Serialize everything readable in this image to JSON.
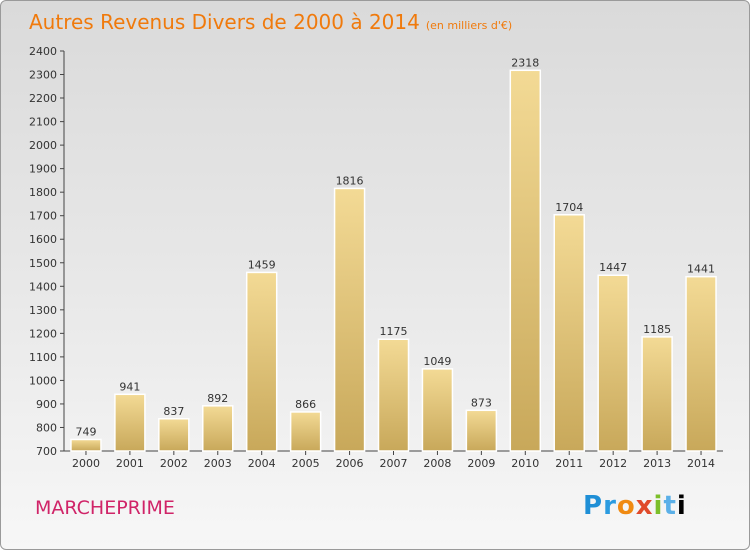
{
  "header": {
    "title": "Autres Revenus Divers de 2000 à 2014",
    "subtitle": "(en milliers d'€)"
  },
  "footer": {
    "place": "MARCHEPRIME",
    "logo_letters": [
      "P",
      "r",
      "o",
      "x",
      "i",
      "t",
      "i"
    ]
  },
  "colors": {
    "title": "#f07a0c",
    "place": "#d02468",
    "bar_light": "#f3da95",
    "bar_dark": "#c8a85a"
  },
  "chart_data": {
    "type": "bar",
    "title": "Autres Revenus Divers de 2000 à 2014",
    "subtitle": "(en milliers d'€)",
    "categories": [
      "2000",
      "2001",
      "2002",
      "2003",
      "2004",
      "2005",
      "2006",
      "2007",
      "2008",
      "2009",
      "2010",
      "2011",
      "2012",
      "2013",
      "2014"
    ],
    "values": [
      749,
      941,
      837,
      892,
      1459,
      866,
      1816,
      1175,
      1049,
      873,
      2318,
      1704,
      1447,
      1185,
      1441
    ],
    "ylim": [
      700,
      2400
    ],
    "yticks": [
      700,
      800,
      900,
      1000,
      1100,
      1200,
      1300,
      1400,
      1500,
      1600,
      1700,
      1800,
      1900,
      2000,
      2100,
      2200,
      2300,
      2400
    ],
    "grid": false,
    "xlabel": "",
    "ylabel": ""
  }
}
